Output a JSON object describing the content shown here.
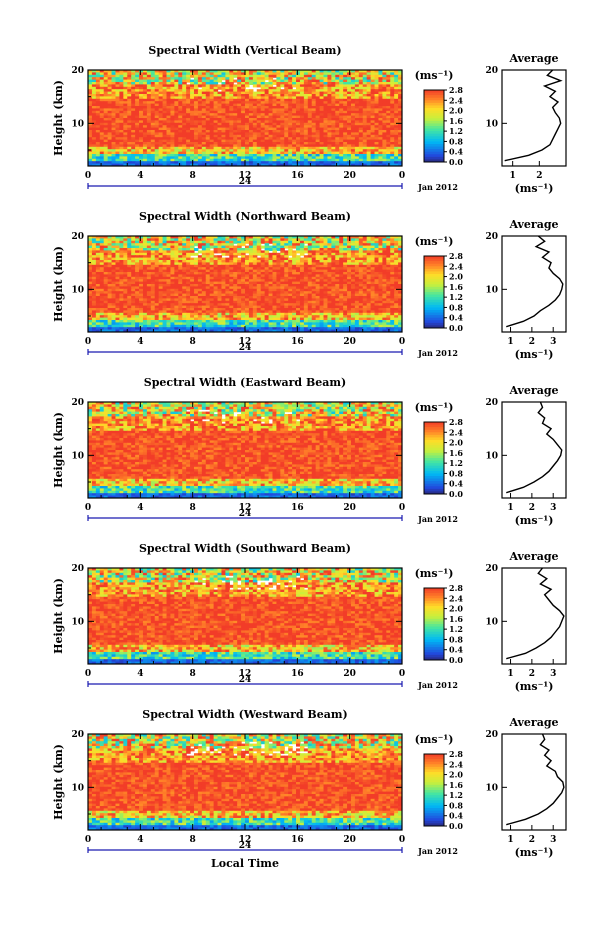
{
  "figure": {
    "xlabel": "Local Time",
    "date_label": "Jan 2012",
    "ylabel": "Height (km)",
    "unit_label": "(ms⁻¹)",
    "avg_title": "Average",
    "avg_xlabel": "(ms⁻¹)"
  },
  "chart_data": [
    {
      "type": "heatmap",
      "title": "Spectral Width (Vertical Beam)",
      "xlabel": "Local Time",
      "ylabel": "Height (km)",
      "x_ticks": [
        "0",
        "4",
        "8",
        "12",
        "16",
        "20",
        "0"
      ],
      "x_sub_label": "24",
      "date_label": "Jan 2012",
      "ylim": [
        2,
        20
      ],
      "y_ticks": [
        "20",
        "10"
      ],
      "colorbar": {
        "label": "(ms⁻¹)",
        "range": [
          0,
          2.8
        ],
        "ticks": [
          "2.8",
          "2.4",
          "2.0",
          "1.6",
          "1.2",
          "0.8",
          "0.4",
          "0.0"
        ]
      },
      "profile": {
        "title": "Average",
        "xlabel": "(ms⁻¹)",
        "x_ticks": [
          "1",
          "2"
        ],
        "xlim": [
          0.6,
          3.0
        ],
        "heights": [
          3,
          4,
          5,
          6,
          7,
          8,
          9,
          10,
          11,
          12,
          13,
          14,
          15,
          16,
          17,
          18,
          19,
          20
        ],
        "values": [
          0.7,
          1.6,
          2.1,
          2.4,
          2.5,
          2.6,
          2.7,
          2.8,
          2.75,
          2.6,
          2.5,
          2.7,
          2.4,
          2.6,
          2.2,
          2.8,
          2.3,
          2.5
        ]
      }
    },
    {
      "type": "heatmap",
      "title": "Spectral Width (Northward Beam)",
      "xlabel": "Local Time",
      "ylabel": "Height (km)",
      "x_ticks": [
        "0",
        "4",
        "8",
        "12",
        "16",
        "20",
        "0"
      ],
      "x_sub_label": "24",
      "date_label": "Jan 2012",
      "ylim": [
        2,
        20
      ],
      "y_ticks": [
        "20",
        "10"
      ],
      "colorbar": {
        "label": "(ms⁻¹)",
        "range": [
          0,
          2.8
        ],
        "ticks": [
          "2.8",
          "2.4",
          "2.0",
          "1.6",
          "1.2",
          "0.8",
          "0.4",
          "0.0"
        ]
      },
      "profile": {
        "title": "Average",
        "xlabel": "(ms⁻¹)",
        "x_ticks": [
          "1",
          "2",
          "3"
        ],
        "xlim": [
          0.6,
          3.6
        ],
        "heights": [
          3,
          4,
          5,
          6,
          7,
          8,
          9,
          10,
          11,
          12,
          13,
          14,
          15,
          16,
          17,
          18,
          19,
          20
        ],
        "values": [
          0.8,
          1.6,
          2.1,
          2.4,
          2.8,
          3.1,
          3.3,
          3.4,
          3.45,
          3.3,
          3.0,
          2.8,
          2.9,
          2.5,
          2.8,
          2.2,
          2.6,
          2.3
        ]
      }
    },
    {
      "type": "heatmap",
      "title": "Spectral Width (Eastward Beam)",
      "xlabel": "Local Time",
      "ylabel": "Height (km)",
      "x_ticks": [
        "0",
        "4",
        "8",
        "12",
        "16",
        "20",
        "0"
      ],
      "x_sub_label": "24",
      "date_label": "Jan 2012",
      "ylim": [
        2,
        20
      ],
      "y_ticks": [
        "20",
        "10"
      ],
      "colorbar": {
        "label": "(ms⁻¹)",
        "range": [
          0,
          2.8
        ],
        "ticks": [
          "2.8",
          "2.4",
          "2.0",
          "1.6",
          "1.2",
          "0.8",
          "0.4",
          "0.0"
        ]
      },
      "profile": {
        "title": "Average",
        "xlabel": "(ms⁻¹)",
        "x_ticks": [
          "1",
          "2",
          "3"
        ],
        "xlim": [
          0.6,
          3.6
        ],
        "heights": [
          3,
          4,
          5,
          6,
          7,
          8,
          9,
          10,
          11,
          12,
          13,
          14,
          15,
          16,
          17,
          18,
          19,
          20
        ],
        "values": [
          0.8,
          1.6,
          2.1,
          2.5,
          2.8,
          3.0,
          3.2,
          3.35,
          3.4,
          3.2,
          3.0,
          2.7,
          2.9,
          2.5,
          2.6,
          2.3,
          2.5,
          2.4
        ]
      }
    },
    {
      "type": "heatmap",
      "title": "Spectral Width (Southward Beam)",
      "xlabel": "Local Time",
      "ylabel": "Height (km)",
      "x_ticks": [
        "0",
        "4",
        "8",
        "12",
        "16",
        "20",
        "0"
      ],
      "x_sub_label": "24",
      "date_label": "Jan 2012",
      "ylim": [
        2,
        20
      ],
      "y_ticks": [
        "20",
        "10"
      ],
      "colorbar": {
        "label": "(ms⁻¹)",
        "range": [
          0,
          2.8
        ],
        "ticks": [
          "2.8",
          "2.4",
          "2.0",
          "1.6",
          "1.2",
          "0.8",
          "0.4",
          "0.0"
        ]
      },
      "profile": {
        "title": "Average",
        "xlabel": "(ms⁻¹)",
        "x_ticks": [
          "1",
          "2",
          "3"
        ],
        "xlim": [
          0.6,
          3.6
        ],
        "heights": [
          3,
          4,
          5,
          6,
          7,
          8,
          9,
          10,
          11,
          12,
          13,
          14,
          15,
          16,
          17,
          18,
          19,
          20
        ],
        "values": [
          0.8,
          1.7,
          2.2,
          2.6,
          2.9,
          3.1,
          3.3,
          3.4,
          3.5,
          3.3,
          3.0,
          2.8,
          2.6,
          2.9,
          2.4,
          2.7,
          2.3,
          2.5
        ]
      }
    },
    {
      "type": "heatmap",
      "title": "Spectral Width (Westward Beam)",
      "xlabel": "Local Time",
      "ylabel": "Height (km)",
      "x_ticks": [
        "0",
        "4",
        "8",
        "12",
        "16",
        "20",
        "0"
      ],
      "x_sub_label": "24",
      "date_label": "Jan 2012",
      "ylim": [
        2,
        20
      ],
      "y_ticks": [
        "20",
        "10"
      ],
      "colorbar": {
        "label": "(ms⁻¹)",
        "range": [
          0,
          2.8
        ],
        "ticks": [
          "2.8",
          "2.4",
          "2.0",
          "1.6",
          "1.2",
          "0.8",
          "0.4",
          "0.0"
        ]
      },
      "profile": {
        "title": "Average",
        "xlabel": "(ms⁻¹)",
        "x_ticks": [
          "1",
          "2",
          "3"
        ],
        "xlim": [
          0.6,
          3.6
        ],
        "heights": [
          3,
          4,
          5,
          6,
          7,
          8,
          9,
          10,
          11,
          12,
          13,
          14,
          15,
          16,
          17,
          18,
          19,
          20
        ],
        "values": [
          0.8,
          1.7,
          2.3,
          2.7,
          3.0,
          3.2,
          3.4,
          3.5,
          3.45,
          3.2,
          3.1,
          2.7,
          2.9,
          2.6,
          2.8,
          2.4,
          2.6,
          2.5
        ]
      }
    }
  ]
}
